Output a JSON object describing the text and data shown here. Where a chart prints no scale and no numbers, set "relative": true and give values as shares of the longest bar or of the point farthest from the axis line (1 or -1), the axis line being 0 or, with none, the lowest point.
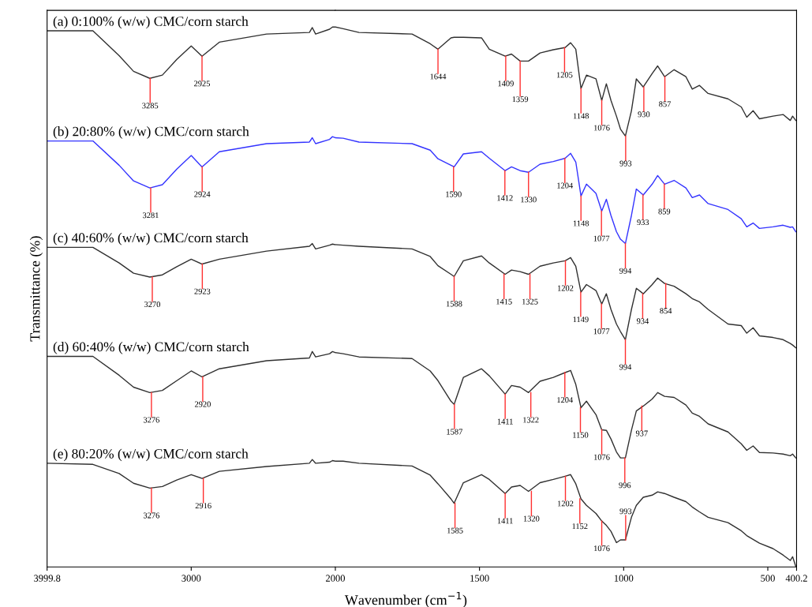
{
  "chart_data": [
    {
      "type": "line",
      "ylabel": "Transmittance (%)",
      "relative": true,
      "xlim": [
        3999.8,
        2000
      ],
      "xticks": [
        3999.8,
        3000,
        2000
      ],
      "x": [
        3999.8,
        3682,
        3500,
        3400,
        3287,
        3200,
        3100,
        3000,
        2925,
        2805,
        2477,
        2180,
        2160,
        2137,
        2040,
        2020,
        2000
      ],
      "series": [
        {
          "name": "(a) 0:100% (w/w) CMC/corn starch",
          "color": "#303030",
          "values": [
            0.993,
            0.993,
            0.947,
            0.918,
            0.905,
            0.911,
            0.94,
            0.965,
            0.946,
            0.972,
            0.987,
            0.99,
            0.999,
            0.987,
            0.996,
            1.0,
            1.0
          ]
        },
        {
          "name": "(b) 20:80% (w/w) CMC/corn starch",
          "color": "#3333ff",
          "values": [
            0.789,
            0.789,
            0.744,
            0.715,
            0.702,
            0.708,
            0.737,
            0.762,
            0.741,
            0.769,
            0.784,
            0.787,
            0.795,
            0.784,
            0.792,
            0.797,
            0.795
          ]
        },
        {
          "name": "(c) 40:60% (w/w) CMC/corn starch",
          "color": "#303030",
          "values": [
            0.592,
            0.592,
            0.563,
            0.544,
            0.537,
            0.541,
            0.556,
            0.57,
            0.561,
            0.57,
            0.585,
            0.594,
            0.599,
            0.589,
            0.596,
            0.598,
            0.597
          ]
        },
        {
          "name": "(d) 60:40% (w/w) CMC/corn starch",
          "color": "#303030",
          "values": [
            0.39,
            0.39,
            0.355,
            0.333,
            0.323,
            0.327,
            0.345,
            0.363,
            0.352,
            0.367,
            0.382,
            0.387,
            0.399,
            0.389,
            0.395,
            0.399,
            0.397
          ]
        },
        {
          "name": "(e) 80:20% (w/w) CMC/corn starch",
          "color": "#303030",
          "values": [
            0.192,
            0.19,
            0.173,
            0.155,
            0.146,
            0.149,
            0.161,
            0.171,
            0.164,
            0.177,
            0.186,
            0.192,
            0.199,
            0.192,
            0.194,
            0.197,
            0.196
          ]
        }
      ],
      "annotations": [
        {
          "text": "3285",
          "x": 3285,
          "y": 0.905
        },
        {
          "text": "2925",
          "x": 2925,
          "y": 0.946
        },
        {
          "text": "3281",
          "x": 3281,
          "y": 0.702
        },
        {
          "text": "2924",
          "x": 2924,
          "y": 0.741
        },
        {
          "text": "3270",
          "x": 3270,
          "y": 0.537
        },
        {
          "text": "2923",
          "x": 2923,
          "y": 0.561
        },
        {
          "text": "3276",
          "x": 3276,
          "y": 0.323
        },
        {
          "text": "2920",
          "x": 2920,
          "y": 0.352
        },
        {
          "text": "3276",
          "x": 3276,
          "y": 0.146
        },
        {
          "text": "2916",
          "x": 2916,
          "y": 0.164
        }
      ]
    },
    {
      "type": "line",
      "xlabel": "Wavenumber (cm$^{−1}$)",
      "relative": true,
      "xlim": [
        2000,
        400.2
      ],
      "xticks": [
        1500,
        1000,
        500,
        400.2
      ],
      "x": [
        2000,
        1973,
        1918,
        1734,
        1671,
        1644,
        1599,
        1588,
        1556,
        1493,
        1466,
        1411,
        1389,
        1359,
        1330,
        1290,
        1244,
        1203,
        1184,
        1166,
        1148,
        1129,
        1096,
        1076,
        1060,
        1044,
        1025,
        1011,
        994,
        973,
        956,
        932,
        901,
        882,
        858,
        825,
        784,
        762,
        737,
        707,
        638,
        592,
        573,
        551,
        529,
        482,
        447,
        422,
        414,
        403
      ],
      "series": [
        {
          "color": "#303030",
          "values": [
            1.0,
            0.997,
            0.99,
            0.987,
            0.969,
            0.959,
            0.98,
            0.981,
            0.981,
            0.98,
            0.959,
            0.946,
            0.95,
            0.937,
            0.937,
            0.952,
            0.958,
            0.962,
            0.971,
            0.959,
            0.886,
            0.911,
            0.904,
            0.864,
            0.895,
            0.864,
            0.835,
            0.811,
            0.798,
            0.845,
            0.904,
            0.889,
            0.914,
            0.928,
            0.908,
            0.921,
            0.908,
            0.885,
            0.892,
            0.877,
            0.867,
            0.852,
            0.833,
            0.845,
            0.83,
            0.835,
            0.838,
            0.827,
            0.835,
            0.827
          ]
        },
        {
          "color": "#3333ff",
          "values": [
            0.795,
            0.794,
            0.787,
            0.784,
            0.772,
            0.756,
            0.744,
            0.741,
            0.765,
            0.769,
            0.757,
            0.734,
            0.741,
            0.734,
            0.731,
            0.746,
            0.751,
            0.757,
            0.766,
            0.75,
            0.687,
            0.709,
            0.692,
            0.659,
            0.681,
            0.651,
            0.621,
            0.607,
            0.599,
            0.651,
            0.7,
            0.689,
            0.709,
            0.725,
            0.709,
            0.716,
            0.702,
            0.684,
            0.689,
            0.673,
            0.662,
            0.645,
            0.63,
            0.637,
            0.627,
            0.63,
            0.633,
            0.629,
            0.63,
            0.621
          ]
        },
        {
          "color": "#303030",
          "values": [
            0.597,
            0.596,
            0.594,
            0.589,
            0.575,
            0.558,
            0.542,
            0.538,
            0.567,
            0.576,
            0.563,
            0.542,
            0.55,
            0.547,
            0.542,
            0.557,
            0.563,
            0.567,
            0.573,
            0.557,
            0.509,
            0.523,
            0.512,
            0.487,
            0.506,
            0.477,
            0.45,
            0.436,
            0.421,
            0.477,
            0.516,
            0.506,
            0.523,
            0.535,
            0.525,
            0.52,
            0.506,
            0.497,
            0.491,
            0.477,
            0.45,
            0.447,
            0.433,
            0.443,
            0.428,
            0.425,
            0.421,
            0.414,
            0.411,
            0.406
          ]
        },
        {
          "color": "#303030",
          "values": [
            0.397,
            0.395,
            0.389,
            0.386,
            0.363,
            0.345,
            0.307,
            0.301,
            0.351,
            0.367,
            0.354,
            0.32,
            0.336,
            0.333,
            0.323,
            0.344,
            0.351,
            0.36,
            0.364,
            0.338,
            0.295,
            0.307,
            0.282,
            0.254,
            0.253,
            0.237,
            0.213,
            0.202,
            0.202,
            0.253,
            0.289,
            0.298,
            0.311,
            0.323,
            0.316,
            0.314,
            0.3,
            0.285,
            0.279,
            0.265,
            0.25,
            0.228,
            0.216,
            0.224,
            0.212,
            0.211,
            0.209,
            0.206,
            0.209,
            0.202
          ]
        },
        {
          "color": "#303030",
          "values": [
            0.196,
            0.196,
            0.192,
            0.187,
            0.17,
            0.154,
            0.126,
            0.118,
            0.156,
            0.171,
            0.162,
            0.136,
            0.148,
            0.151,
            0.14,
            0.156,
            0.162,
            0.168,
            0.171,
            0.154,
            0.126,
            0.114,
            0.099,
            0.085,
            0.077,
            0.066,
            0.045,
            0.05,
            0.05,
            0.092,
            0.114,
            0.129,
            0.133,
            0.139,
            0.136,
            0.129,
            0.121,
            0.111,
            0.102,
            0.092,
            0.082,
            0.067,
            0.058,
            0.051,
            0.044,
            0.034,
            0.022,
            0.012,
            0.019,
            0.001
          ]
        }
      ],
      "annotations": [
        {
          "text": "1644",
          "x": 1644,
          "y": 0.959
        },
        {
          "text": "1409",
          "x": 1409,
          "y": 0.946
        },
        {
          "text": "1359",
          "x": 1359,
          "y": 0.937
        },
        {
          "text": "1205",
          "x": 1205,
          "y": 0.962
        },
        {
          "text": "1148",
          "x": 1148,
          "y": 0.886
        },
        {
          "text": "1076",
          "x": 1076,
          "y": 0.864
        },
        {
          "text": "993",
          "x": 993,
          "y": 0.798
        },
        {
          "text": "930",
          "x": 930,
          "y": 0.889
        },
        {
          "text": "857",
          "x": 857,
          "y": 0.908
        },
        {
          "text": "1590",
          "x": 1590,
          "y": 0.741
        },
        {
          "text": "1412",
          "x": 1412,
          "y": 0.734
        },
        {
          "text": "1330",
          "x": 1330,
          "y": 0.731
        },
        {
          "text": "1204",
          "x": 1204,
          "y": 0.757
        },
        {
          "text": "1148",
          "x": 1148,
          "y": 0.687
        },
        {
          "text": "1077",
          "x": 1077,
          "y": 0.659
        },
        {
          "text": "994",
          "x": 994,
          "y": 0.599
        },
        {
          "text": "933",
          "x": 933,
          "y": 0.689
        },
        {
          "text": "859",
          "x": 859,
          "y": 0.709
        },
        {
          "text": "1588",
          "x": 1588,
          "y": 0.538
        },
        {
          "text": "1415",
          "x": 1415,
          "y": 0.542
        },
        {
          "text": "1325",
          "x": 1325,
          "y": 0.542
        },
        {
          "text": "1202",
          "x": 1202,
          "y": 0.567
        },
        {
          "text": "1149",
          "x": 1149,
          "y": 0.509
        },
        {
          "text": "1077",
          "x": 1077,
          "y": 0.487
        },
        {
          "text": "994",
          "x": 994,
          "y": 0.421
        },
        {
          "text": "934",
          "x": 934,
          "y": 0.506
        },
        {
          "text": "854",
          "x": 854,
          "y": 0.525
        },
        {
          "text": "1587",
          "x": 1587,
          "y": 0.301
        },
        {
          "text": "1411",
          "x": 1411,
          "y": 0.32
        },
        {
          "text": "1322",
          "x": 1322,
          "y": 0.323
        },
        {
          "text": "1204",
          "x": 1204,
          "y": 0.36
        },
        {
          "text": "1150",
          "x": 1150,
          "y": 0.295
        },
        {
          "text": "1076",
          "x": 1076,
          "y": 0.254
        },
        {
          "text": "996",
          "x": 996,
          "y": 0.202
        },
        {
          "text": "937",
          "x": 937,
          "y": 0.298
        },
        {
          "text": "1585",
          "x": 1585,
          "y": 0.118
        },
        {
          "text": "1411",
          "x": 1411,
          "y": 0.136
        },
        {
          "text": "1320",
          "x": 1320,
          "y": 0.14
        },
        {
          "text": "1202",
          "x": 1202,
          "y": 0.168
        },
        {
          "text": "1152",
          "x": 1152,
          "y": 0.126
        },
        {
          "text": "1076",
          "x": 1076,
          "y": 0.085
        },
        {
          "text": "993",
          "x": 993,
          "y": 0.05
        }
      ]
    }
  ]
}
